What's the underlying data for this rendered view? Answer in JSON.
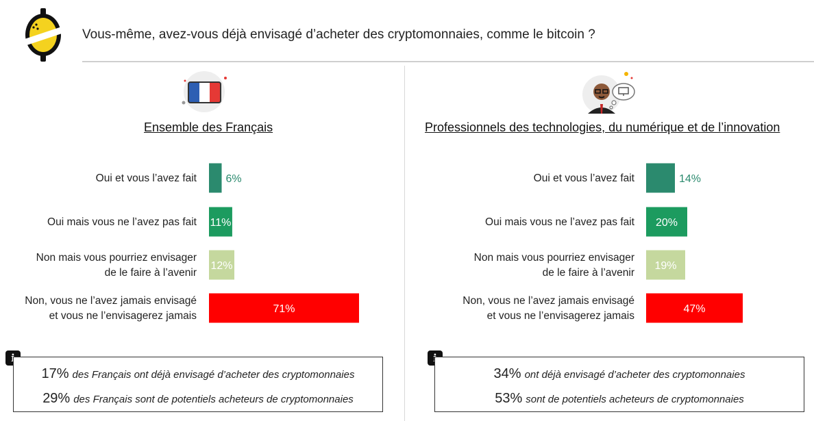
{
  "question": "Vous-même, avez-vous déjà envisagé d’acheter des cryptomonnaies, comme le bitcoin ?",
  "colors": {
    "oui_fait": "#2b8a6e",
    "oui_pas_fait": "#1c9b5f",
    "non_envisager": "#c5d89e",
    "non_jamais": "#ff0000"
  },
  "panels": {
    "left": {
      "title": "Ensemble des Français",
      "icon": "france-flag-icon",
      "info": {
        "line1_pct": "17%",
        "line1_text": "des Français ont déjà envisagé d’acheter des cryptomonnaies",
        "line2_pct": "29%",
        "line2_text": "des Français sont de potentiels acheteurs de cryptomonnaies"
      }
    },
    "right": {
      "title": "Professionnels des technologies, du numérique et de l’innovation",
      "icon": "tech-professional-icon",
      "info": {
        "line1_pct": "34%",
        "line1_text": "ont déjà envisagé d’acheter des cryptomonnaies",
        "line2_pct": "53%",
        "line2_text": "sont de potentiels acheteurs de cryptomonnaies"
      }
    }
  },
  "chart_data": [
    {
      "type": "bar",
      "orientation": "horizontal",
      "title": "Ensemble des Français",
      "categories": [
        [
          "Oui et vous l’avez fait"
        ],
        [
          "Oui mais vous ne l’avez pas fait"
        ],
        [
          "Non mais vous pourriez envisager",
          "de le faire à l’avenir"
        ],
        [
          "Non, vous ne l’avez jamais envisagé",
          "et vous ne l’envisagerez jamais"
        ]
      ],
      "values": [
        6,
        11,
        12,
        71
      ],
      "labels": [
        "6%",
        "11%",
        "12%",
        "71%"
      ],
      "xlim": [
        0,
        100
      ]
    },
    {
      "type": "bar",
      "orientation": "horizontal",
      "title": "Professionnels des technologies, du numérique et de l’innovation",
      "categories": [
        [
          "Oui et vous l’avez fait"
        ],
        [
          "Oui mais vous ne l’avez pas fait"
        ],
        [
          "Non mais vous pourriez envisager",
          "de le faire à l’avenir"
        ],
        [
          "Non, vous ne l’avez jamais envisagé",
          "et vous ne l’envisagerez jamais"
        ]
      ],
      "values": [
        14,
        20,
        19,
        47
      ],
      "labels": [
        "14%",
        "20%",
        "19%",
        "47%"
      ],
      "xlim": [
        0,
        100
      ]
    }
  ]
}
